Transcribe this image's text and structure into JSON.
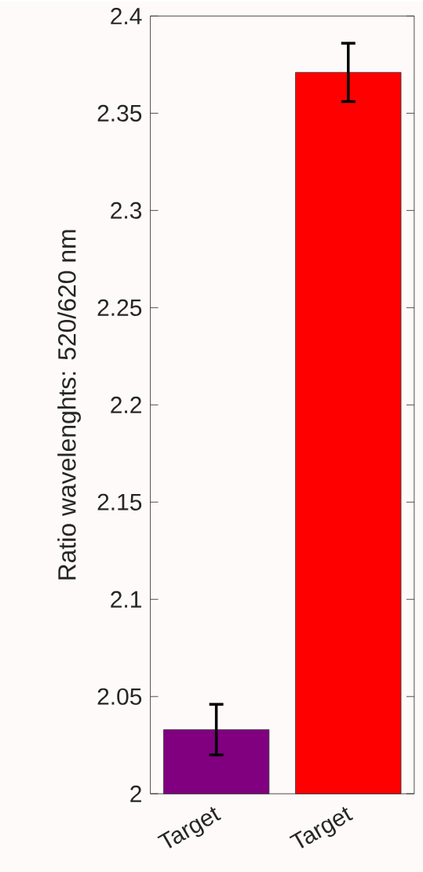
{
  "chart_data": {
    "type": "bar",
    "ylabel": "Ratio wavelenghts: 520/620 nm",
    "categories": [
      "Target",
      "Target"
    ],
    "values": [
      2.033,
      2.371
    ],
    "colors": [
      "#800080",
      "#ff0000"
    ],
    "errors": [
      0.013,
      0.015
    ],
    "ylim": [
      2,
      2.4
    ],
    "yticks": [
      2,
      2.05,
      2.1,
      2.15,
      2.2,
      2.25,
      2.3,
      2.35,
      2.4
    ]
  }
}
